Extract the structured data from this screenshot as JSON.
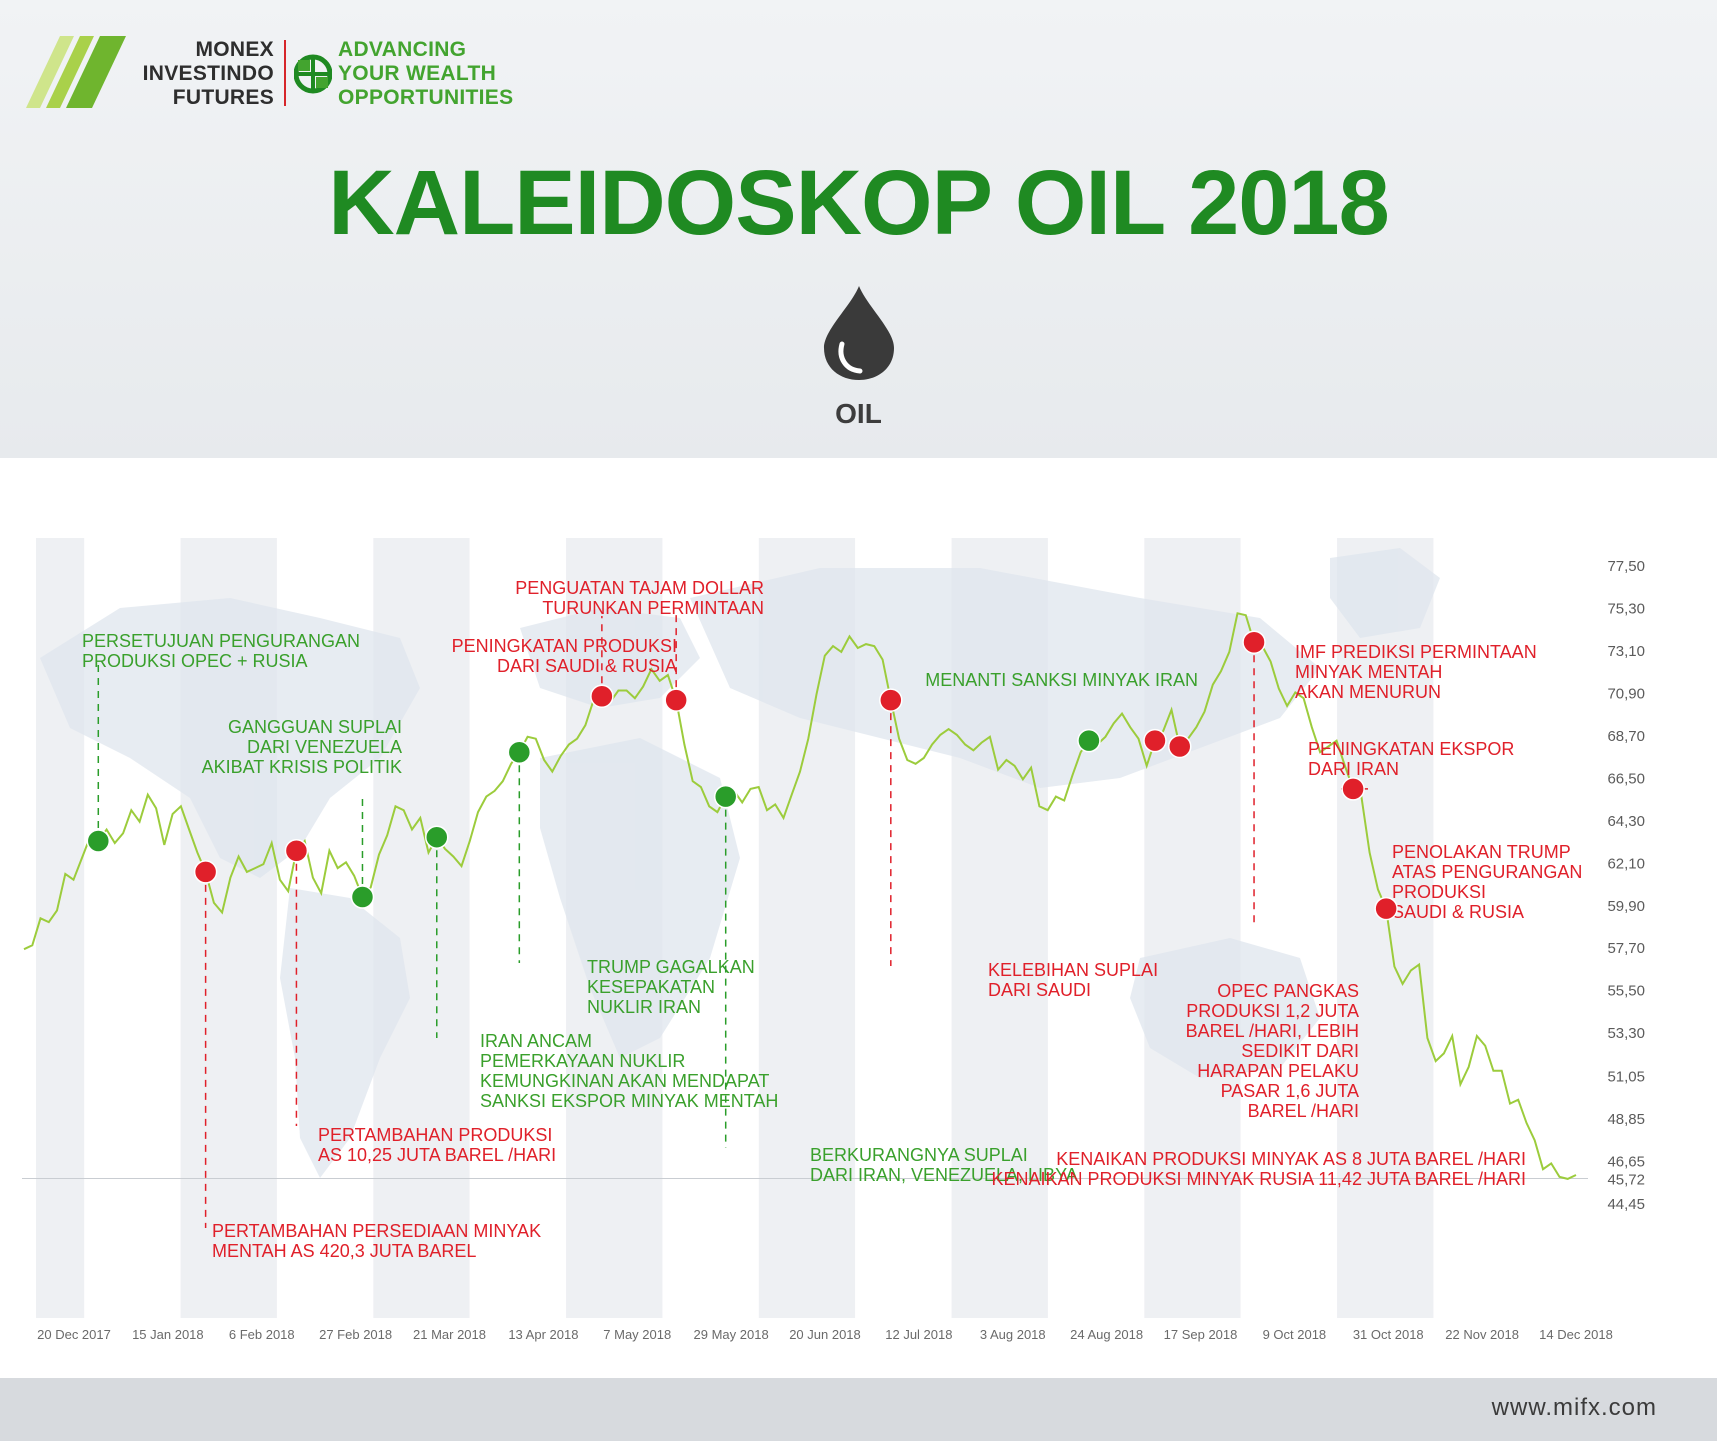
{
  "brand": {
    "name_lines": [
      "MONEX",
      "INVESTINDO",
      "FUTURES"
    ],
    "tagline_lines": [
      "ADVANCING",
      "YOUR WEALTH",
      "OPPORTUNITIES"
    ]
  },
  "title": "KALEIDOSKOP OIL 2018",
  "icon": {
    "name": "oil-drop-icon",
    "label": "OIL"
  },
  "footer": {
    "url": "www.mifx.com"
  },
  "colors": {
    "title_green": "#1f8a22",
    "line_green": "#9ccc3c",
    "positive_event": "#2a9d2a",
    "negative_event": "#e0202a",
    "positive_text": "#3aa02c",
    "negative_text": "#e0202a"
  },
  "chart_data": {
    "type": "line",
    "title": "",
    "xlabel": "",
    "ylabel": "",
    "x_tick_labels": [
      "20 Dec 2017",
      "15 Jan 2018",
      "6 Feb 2018",
      "27 Feb 2018",
      "21 Mar 2018",
      "13 Apr 2018",
      "7 May 2018",
      "29 May 2018",
      "20 Jun 2018",
      "12 Jul 2018",
      "3 Aug 2018",
      "24 Aug 2018",
      "17 Sep 2018",
      "9 Oct 2018",
      "31 Oct 2018",
      "22 Nov 2018",
      "14 Dec 2018"
    ],
    "y_tick_labels": [
      "77,50",
      "75,30",
      "73,10",
      "70,90",
      "68,70",
      "66,50",
      "64,30",
      "62,10",
      "59,90",
      "57,70",
      "55,50",
      "53,30",
      "51,05",
      "48,85",
      "46,65",
      "45,72",
      "44,45"
    ],
    "y_tick_values": [
      77.5,
      75.3,
      73.1,
      70.9,
      68.7,
      66.5,
      64.3,
      62.1,
      59.9,
      57.7,
      55.5,
      53.3,
      51.05,
      48.85,
      46.65,
      45.72,
      44.45
    ],
    "ylim": [
      44.45,
      77.5
    ],
    "grid": "vertical bands",
    "series": [
      {
        "values": [
          57.6,
          57.8,
          59.2,
          59.0,
          59.6,
          61.5,
          61.2,
          62.3,
          63.4,
          63.2,
          63.8,
          63.1,
          63.6,
          64.8,
          64.2,
          65.6,
          64.9,
          63.0,
          64.6,
          65.0,
          63.8,
          62.6,
          61.6,
          60.0,
          59.5,
          61.3,
          62.4,
          61.6,
          61.8,
          62.0,
          63.1,
          61.2,
          60.6,
          62.7,
          63.2,
          61.3,
          60.5,
          62.7,
          61.8,
          62.1,
          61.4,
          60.3,
          60.8,
          62.5,
          63.5,
          65.0,
          64.8,
          63.8,
          64.4,
          62.6,
          63.4,
          62.8,
          62.4,
          61.9,
          63.2,
          64.7,
          65.5,
          65.8,
          66.3,
          67.2,
          67.8,
          68.6,
          68.5,
          67.4,
          66.8,
          67.6,
          68.2,
          68.5,
          69.2,
          70.5,
          70.7,
          70.4,
          71.0,
          71.0,
          70.6,
          71.2,
          72.1,
          71.5,
          71.8,
          70.5,
          68.2,
          66.3,
          66.0,
          65.0,
          64.7,
          65.5,
          65.8,
          65.2,
          65.9,
          66.0,
          64.8,
          65.1,
          64.4,
          65.6,
          66.8,
          68.5,
          70.8,
          72.8,
          73.3,
          73.0,
          73.8,
          73.2,
          73.4,
          73.3,
          72.6,
          70.5,
          68.5,
          67.4,
          67.2,
          67.5,
          68.2,
          68.7,
          69.0,
          68.7,
          68.2,
          67.9,
          68.3,
          68.6,
          66.9,
          67.4,
          67.1,
          66.4,
          67.0,
          65.0,
          64.8,
          65.5,
          65.3,
          66.6,
          67.8,
          68.4,
          68.2,
          68.6,
          69.3,
          69.8,
          69.1,
          68.5,
          67.1,
          68.4,
          68.9,
          70.0,
          68.1,
          68.5,
          69.1,
          69.9,
          71.3,
          72.0,
          73.0,
          75.0,
          74.9,
          73.5,
          73.3,
          72.5,
          71.1,
          70.2,
          70.9,
          70.6,
          69.1,
          67.8,
          68.1,
          68.4,
          67.1,
          65.9,
          65.5,
          62.6,
          60.7,
          59.7,
          56.7,
          55.8,
          56.5,
          56.8,
          53.0,
          51.8,
          52.2,
          53.1,
          50.6,
          51.5,
          53.1,
          52.6,
          51.3,
          51.3,
          49.6,
          49.8,
          48.6,
          47.7,
          46.2,
          46.5,
          45.8,
          45.7,
          45.9
        ]
      }
    ],
    "events": [
      {
        "index": 9,
        "type": "positive",
        "text": [
          "PERSETUJUAN PENGURANGAN",
          "PRODUKSI OPEC + RUSIA"
        ]
      },
      {
        "index": 22,
        "type": "negative",
        "text": [
          "PERTAMBAHAN PERSEDIAAN MINYAK",
          "MENTAH AS 420,3 JUTA BAREL"
        ]
      },
      {
        "index": 33,
        "type": "negative",
        "text": [
          "PERTAMBAHAN PRODUKSI",
          "AS 10,25 JUTA BAREL /HARI"
        ]
      },
      {
        "index": 41,
        "type": "positive",
        "text": [
          "GANGGUAN SUPLAI",
          "DARI VENEZUELA",
          "AKIBAT KRISIS POLITIK"
        ]
      },
      {
        "index": 50,
        "type": "positive",
        "text": [
          "IRAN ANCAM",
          "PEMERKAYAAN NUKLIR",
          "KEMUNGKINAN AKAN MENDAPAT",
          "SANKSI EKSPOR MINYAK MENTAH"
        ]
      },
      {
        "index": 60,
        "type": "positive",
        "text": [
          "TRUMP GAGALKAN",
          "KESEPAKATAN",
          "NUKLIR IRAN"
        ]
      },
      {
        "index": 70,
        "type": "negative",
        "text": [
          "PENINGKATAN PRODUKSI",
          "DARI SAUDI & RUSIA"
        ]
      },
      {
        "index": 79,
        "type": "negative",
        "text": [
          "PENGUATAN TAJAM DOLLAR",
          "TURUNKAN PERMINTAAN"
        ]
      },
      {
        "index": 85,
        "type": "positive",
        "text": [
          "BERKURANGNYA SUPLAI",
          "DARI IRAN, VENEZUELA, LIBYA"
        ]
      },
      {
        "index": 105,
        "type": "negative",
        "text": [
          "KELEBIHAN SUPLAI",
          "DARI SAUDI"
        ]
      },
      {
        "index": 129,
        "type": "positive",
        "text": [
          "MENANTI SANKSI MINYAK IRAN"
        ]
      },
      {
        "index": 137,
        "type": "negative",
        "text": [
          "IMF PREDIKSI PERMINTAAN",
          "MINYAK MENTAH",
          "AKAN MENURUN"
        ]
      },
      {
        "index": 140,
        "type": "negative",
        "text": [
          "PENINGKATAN EKSPOR",
          "DARI IRAN"
        ]
      },
      {
        "index": 149,
        "type": "negative",
        "text": [
          "PENOLAKAN TRUMP",
          "ATAS PENGURANGAN",
          "PRODUKSI",
          "SAUDI & RUSIA"
        ]
      },
      {
        "index": 161,
        "type": "negative",
        "text": [
          "OPEC PANGKAS",
          "PRODUKSI 1,2 JUTA",
          "BAREL /HARI, LEBIH",
          "SEDIKIT DARI",
          "HARAPAN PELAKU",
          "PASAR 1,6 JUTA",
          "BAREL /HARI"
        ]
      },
      {
        "index": 165,
        "type": "negative",
        "text": [
          "KENAIKAN PRODUKSI MINYAK AS 8 JUTA BAREL /HARI",
          "KENAIKAN PRODUKSI MINYAK RUSIA 11,42 JUTA BAREL /HARI"
        ]
      }
    ]
  }
}
